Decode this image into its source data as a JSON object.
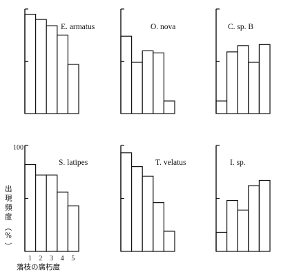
{
  "chart_data": [
    {
      "type": "bar",
      "title": "E. armatus",
      "categories": [
        "1",
        "2",
        "3",
        "4",
        "5"
      ],
      "values": [
        95,
        90,
        84,
        75,
        47
      ],
      "ylim": [
        0,
        100
      ]
    },
    {
      "type": "bar",
      "title": "O. nova",
      "categories": [
        "1",
        "2",
        "3",
        "4",
        "5"
      ],
      "values": [
        74,
        49,
        60,
        58,
        12
      ],
      "ylim": [
        0,
        100
      ]
    },
    {
      "type": "bar",
      "title": "C. sp. B",
      "categories": [
        "1",
        "2",
        "3",
        "4",
        "5"
      ],
      "values": [
        12,
        59,
        65,
        49,
        66
      ],
      "ylim": [
        0,
        100
      ]
    },
    {
      "type": "bar",
      "title": "S. latipes",
      "categories": [
        "1",
        "2",
        "3",
        "4",
        "5"
      ],
      "values": [
        82,
        72,
        72,
        56,
        43
      ],
      "ylim": [
        0,
        100
      ]
    },
    {
      "type": "bar",
      "title": "T. velatus",
      "categories": [
        "1",
        "2",
        "3",
        "4",
        "5"
      ],
      "values": [
        93,
        80,
        71,
        46,
        19
      ],
      "ylim": [
        0,
        100
      ]
    },
    {
      "type": "bar",
      "title": "I. sp.",
      "categories": [
        "1",
        "2",
        "3",
        "4",
        "5"
      ],
      "values": [
        18,
        48,
        39,
        62,
        67
      ],
      "ylim": [
        0,
        100
      ]
    }
  ],
  "y_axis_label": "出現頻度（%）",
  "x_axis_label": "落枝の腐朽度",
  "y_tick_label": "100"
}
